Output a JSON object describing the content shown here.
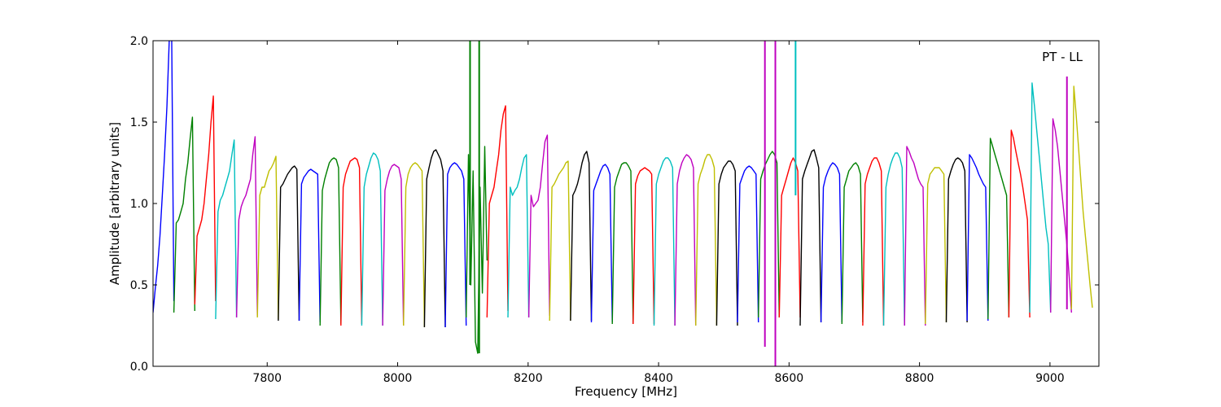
{
  "chart_data": {
    "type": "line",
    "title": "",
    "annotation": "PT - LL",
    "xlabel": "Frequency [MHz]",
    "ylabel": "Amplitude [arbitrary units]",
    "xlim": [
      7625,
      9075
    ],
    "ylim": [
      0,
      2.0
    ],
    "xticks": [
      7800,
      8000,
      8200,
      8400,
      8600,
      8800,
      9000
    ],
    "yticks": [
      0.0,
      0.5,
      1.0,
      1.5,
      2.0
    ],
    "xtick_labels": [
      "7800",
      "8000",
      "8200",
      "8400",
      "8600",
      "8800",
      "9000"
    ],
    "ytick_labels": [
      "0.0",
      "0.5",
      "1.0",
      "1.5",
      "2.0"
    ],
    "grid": false,
    "legend": "none",
    "colors": [
      "#0000ff",
      "#008000",
      "#ff0000",
      "#00bfbf",
      "#bf00bf",
      "#bfbf00",
      "#000000"
    ],
    "band_width_mhz": 32,
    "series": [
      {
        "start": 7625,
        "color": "#0000ff",
        "values": [
          0.33,
          0.48,
          0.62,
          0.8,
          1.05,
          1.3,
          1.6,
          2.0,
          2.1,
          0.4
        ]
      },
      {
        "start": 7657,
        "color": "#008000",
        "values": [
          0.33,
          0.88,
          0.9,
          0.95,
          1.0,
          1.15,
          1.25,
          1.4,
          1.53,
          0.34
        ]
      },
      {
        "start": 7689,
        "color": "#ff0000",
        "values": [
          0.38,
          0.8,
          0.85,
          0.9,
          1.0,
          1.15,
          1.3,
          1.5,
          1.66,
          0.4
        ]
      },
      {
        "start": 7721,
        "color": "#00bfbf",
        "values": [
          0.29,
          0.95,
          1.02,
          1.05,
          1.1,
          1.15,
          1.2,
          1.3,
          1.39,
          0.3
        ]
      },
      {
        "start": 7753,
        "color": "#bf00bf",
        "values": [
          0.3,
          0.9,
          0.98,
          1.02,
          1.05,
          1.1,
          1.15,
          1.3,
          1.41,
          0.31
        ]
      },
      {
        "start": 7785,
        "color": "#bfbf00",
        "values": [
          0.3,
          1.05,
          1.1,
          1.1,
          1.15,
          1.2,
          1.22,
          1.25,
          1.29,
          0.29
        ]
      },
      {
        "start": 7817,
        "color": "#000000",
        "values": [
          0.28,
          1.1,
          1.12,
          1.15,
          1.18,
          1.2,
          1.22,
          1.23,
          1.21,
          0.28
        ]
      },
      {
        "start": 7849,
        "color": "#0000ff",
        "values": [
          0.28,
          1.12,
          1.16,
          1.18,
          1.2,
          1.21,
          1.2,
          1.19,
          1.18,
          0.27
        ]
      },
      {
        "start": 7881,
        "color": "#008000",
        "values": [
          0.25,
          1.08,
          1.15,
          1.2,
          1.25,
          1.27,
          1.28,
          1.27,
          1.22,
          0.26
        ]
      },
      {
        "start": 7913,
        "color": "#ff0000",
        "values": [
          0.25,
          1.1,
          1.18,
          1.22,
          1.26,
          1.27,
          1.28,
          1.27,
          1.22,
          0.26
        ]
      },
      {
        "start": 7945,
        "color": "#00bfbf",
        "values": [
          0.25,
          1.1,
          1.18,
          1.23,
          1.28,
          1.31,
          1.3,
          1.27,
          1.2,
          0.25
        ]
      },
      {
        "start": 7977,
        "color": "#bf00bf",
        "values": [
          0.25,
          1.08,
          1.15,
          1.2,
          1.23,
          1.24,
          1.23,
          1.22,
          1.15,
          0.25
        ]
      },
      {
        "start": 8009,
        "color": "#bfbf00",
        "values": [
          0.25,
          1.1,
          1.18,
          1.22,
          1.24,
          1.25,
          1.24,
          1.22,
          1.2,
          0.24
        ]
      },
      {
        "start": 8041,
        "color": "#000000",
        "values": [
          0.24,
          1.15,
          1.22,
          1.28,
          1.32,
          1.33,
          1.3,
          1.27,
          1.2,
          0.24
        ]
      },
      {
        "start": 8073,
        "color": "#0000ff",
        "values": [
          0.24,
          1.18,
          1.22,
          1.24,
          1.25,
          1.24,
          1.22,
          1.2,
          1.15,
          0.25
        ]
      },
      {
        "start": 8105,
        "color": "#008000",
        "values": [
          0.3,
          1.3,
          0.5,
          1.2,
          0.15,
          0.08,
          1.1,
          0.45,
          1.35,
          0.65
        ]
      },
      {
        "start": 8137,
        "color": "#ff0000",
        "values": [
          0.3,
          1.0,
          1.05,
          1.1,
          1.2,
          1.3,
          1.45,
          1.55,
          1.6,
          0.34
        ]
      },
      {
        "start": 8169,
        "color": "#00bfbf",
        "values": [
          0.3,
          1.1,
          1.05,
          1.08,
          1.1,
          1.15,
          1.22,
          1.28,
          1.3,
          0.3
        ]
      },
      {
        "start": 8201,
        "color": "#bf00bf",
        "values": [
          0.3,
          1.05,
          0.98,
          1.0,
          1.02,
          1.1,
          1.25,
          1.38,
          1.42,
          0.31
        ]
      },
      {
        "start": 8233,
        "color": "#bfbf00",
        "values": [
          0.28,
          1.1,
          1.12,
          1.15,
          1.18,
          1.2,
          1.22,
          1.25,
          1.26,
          0.28
        ]
      },
      {
        "start": 8265,
        "color": "#000000",
        "values": [
          0.28,
          1.05,
          1.08,
          1.12,
          1.18,
          1.25,
          1.3,
          1.32,
          1.25,
          0.28
        ]
      },
      {
        "start": 8297,
        "color": "#0000ff",
        "values": [
          0.27,
          1.08,
          1.12,
          1.16,
          1.2,
          1.23,
          1.24,
          1.22,
          1.18,
          0.27
        ]
      },
      {
        "start": 8329,
        "color": "#008000",
        "values": [
          0.26,
          1.1,
          1.16,
          1.2,
          1.24,
          1.25,
          1.25,
          1.23,
          1.2,
          0.26
        ]
      },
      {
        "start": 8361,
        "color": "#ff0000",
        "values": [
          0.26,
          1.12,
          1.17,
          1.2,
          1.21,
          1.22,
          1.21,
          1.2,
          1.18,
          0.26
        ]
      },
      {
        "start": 8393,
        "color": "#00bfbf",
        "values": [
          0.25,
          1.12,
          1.18,
          1.22,
          1.26,
          1.28,
          1.28,
          1.26,
          1.22,
          0.25
        ]
      },
      {
        "start": 8425,
        "color": "#bf00bf",
        "values": [
          0.25,
          1.12,
          1.2,
          1.25,
          1.28,
          1.3,
          1.29,
          1.27,
          1.22,
          0.25
        ]
      },
      {
        "start": 8457,
        "color": "#bfbf00",
        "values": [
          0.25,
          1.12,
          1.18,
          1.22,
          1.27,
          1.3,
          1.3,
          1.27,
          1.22,
          0.25
        ]
      },
      {
        "start": 8489,
        "color": "#000000",
        "values": [
          0.25,
          1.12,
          1.18,
          1.22,
          1.24,
          1.26,
          1.26,
          1.24,
          1.2,
          0.25
        ]
      },
      {
        "start": 8521,
        "color": "#0000ff",
        "values": [
          0.27,
          1.12,
          1.16,
          1.2,
          1.22,
          1.23,
          1.22,
          1.2,
          1.18,
          0.27
        ]
      },
      {
        "start": 8553,
        "color": "#008000",
        "values": [
          0.3,
          1.15,
          1.2,
          1.24,
          1.27,
          1.3,
          1.32,
          1.3,
          1.25,
          0.3
        ]
      },
      {
        "start": 8585,
        "color": "#ff0000",
        "values": [
          0.3,
          1.05,
          1.1,
          1.15,
          1.2,
          1.25,
          1.28,
          1.25,
          1.2,
          0.3
        ]
      },
      {
        "start": 8617,
        "color": "#000000",
        "values": [
          0.25,
          1.15,
          1.2,
          1.24,
          1.28,
          1.32,
          1.33,
          1.28,
          1.22,
          0.27
        ]
      },
      {
        "start": 8649,
        "color": "#0000ff",
        "values": [
          0.27,
          1.1,
          1.16,
          1.2,
          1.23,
          1.25,
          1.24,
          1.22,
          1.18,
          0.27
        ]
      },
      {
        "start": 8681,
        "color": "#008000",
        "values": [
          0.26,
          1.1,
          1.15,
          1.2,
          1.22,
          1.24,
          1.25,
          1.23,
          1.18,
          0.27
        ]
      },
      {
        "start": 8713,
        "color": "#ff0000",
        "values": [
          0.25,
          1.12,
          1.18,
          1.22,
          1.26,
          1.28,
          1.28,
          1.25,
          1.2,
          0.25
        ]
      },
      {
        "start": 8745,
        "color": "#00bfbf",
        "values": [
          0.25,
          1.1,
          1.18,
          1.24,
          1.28,
          1.31,
          1.31,
          1.28,
          1.22,
          0.25
        ]
      },
      {
        "start": 8777,
        "color": "#bf00bf",
        "values": [
          0.25,
          1.35,
          1.32,
          1.28,
          1.25,
          1.2,
          1.15,
          1.12,
          1.1,
          0.25
        ]
      },
      {
        "start": 8809,
        "color": "#bfbf00",
        "values": [
          0.26,
          1.12,
          1.18,
          1.2,
          1.22,
          1.22,
          1.22,
          1.2,
          1.18,
          0.27
        ]
      },
      {
        "start": 8841,
        "color": "#000000",
        "values": [
          0.27,
          1.15,
          1.2,
          1.24,
          1.27,
          1.28,
          1.27,
          1.25,
          1.2,
          0.27
        ]
      },
      {
        "start": 8873,
        "color": "#0000ff",
        "values": [
          0.28,
          1.3,
          1.28,
          1.25,
          1.22,
          1.18,
          1.15,
          1.12,
          1.1,
          0.28
        ]
      },
      {
        "start": 8905,
        "color": "#008000",
        "values": [
          0.29,
          1.4,
          1.35,
          1.3,
          1.25,
          1.2,
          1.15,
          1.1,
          1.05,
          0.3
        ]
      },
      {
        "start": 8937,
        "color": "#ff0000",
        "values": [
          0.3,
          1.45,
          1.4,
          1.32,
          1.25,
          1.18,
          1.1,
          1.0,
          0.9,
          0.3
        ]
      },
      {
        "start": 8969,
        "color": "#00bfbf",
        "values": [
          0.33,
          1.74,
          1.6,
          1.45,
          1.3,
          1.15,
          1.0,
          0.85,
          0.75,
          0.33
        ]
      },
      {
        "start": 9001,
        "color": "#bf00bf",
        "values": [
          0.33,
          1.52,
          1.45,
          1.35,
          1.2,
          1.05,
          0.9,
          0.75,
          0.55,
          0.33
        ]
      },
      {
        "start": 9033,
        "color": "#bfbf00",
        "values": [
          0.35,
          1.72,
          1.55,
          1.35,
          1.15,
          0.95,
          0.8,
          0.65,
          0.5,
          0.36
        ]
      }
    ],
    "spikes": [
      {
        "x": 8111,
        "y1": 0.5,
        "y2": 2.0,
        "color": "#008000"
      },
      {
        "x": 8125,
        "y1": 0.08,
        "y2": 2.0,
        "color": "#008000"
      },
      {
        "x": 8563,
        "y1": 0.12,
        "y2": 2.0,
        "color": "#bf00bf"
      },
      {
        "x": 8579,
        "y1": 0.0,
        "y2": 2.0,
        "color": "#bf00bf"
      },
      {
        "x": 8610,
        "y1": 1.05,
        "y2": 2.0,
        "color": "#00bfbf"
      },
      {
        "x": 9026,
        "y1": 0.35,
        "y2": 1.78,
        "color": "#bf00bf"
      }
    ]
  }
}
